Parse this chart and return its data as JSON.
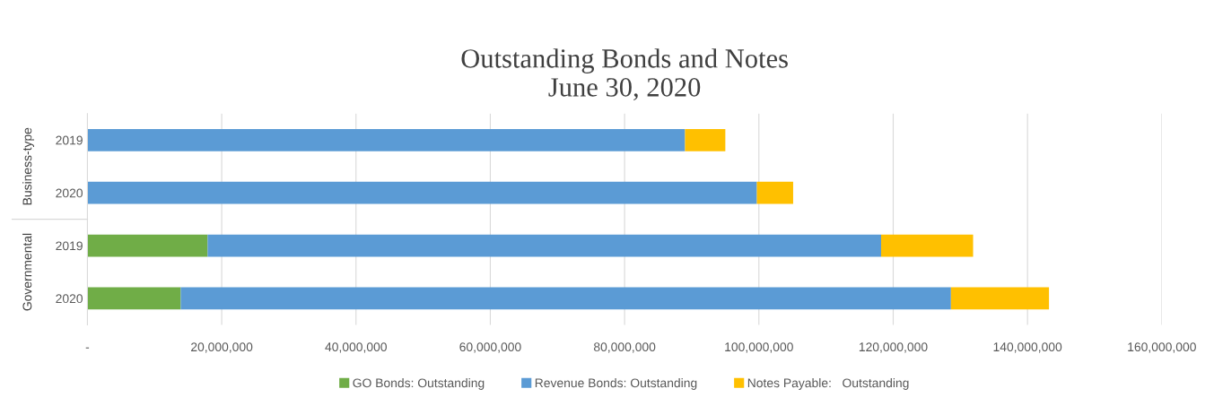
{
  "chart_data": {
    "type": "bar",
    "orientation": "horizontal",
    "stacked": true,
    "title": "Outstanding Bonds and Notes\nJune 30, 2020",
    "categories": [
      "2019",
      "2020",
      "2019",
      "2020"
    ],
    "series": [
      {
        "name": "GO Bonds: Outstanding",
        "color": "#70ad47",
        "values": [
          0,
          0,
          17900000,
          13900000
        ]
      },
      {
        "name": "Revenue Bonds: Outstanding",
        "color": "#5b9bd5",
        "values": [
          89000000,
          99700000,
          100300000,
          114700000
        ]
      },
      {
        "name": "Notes Payable:   Outstanding",
        "color": "#ffc000",
        "values": [
          6000000,
          5400000,
          13700000,
          14600000
        ]
      }
    ],
    "xlim": [
      0,
      160000000
    ],
    "xticks": [
      {
        "value": 0,
        "label": "-"
      },
      {
        "value": 20000000,
        "label": "20,000,000"
      },
      {
        "value": 40000000,
        "label": "40,000,000"
      },
      {
        "value": 60000000,
        "label": "60,000,000"
      },
      {
        "value": 80000000,
        "label": "80,000,000"
      },
      {
        "value": 100000000,
        "label": "100,000,000"
      },
      {
        "value": 120000000,
        "label": "120,000,000"
      },
      {
        "value": 140000000,
        "label": "140,000,000"
      },
      {
        "value": 160000000,
        "label": "160,000,000"
      }
    ],
    "annotations": [
      "Business-type",
      "Governmental"
    ],
    "grid": "x",
    "legend": "bottom"
  }
}
